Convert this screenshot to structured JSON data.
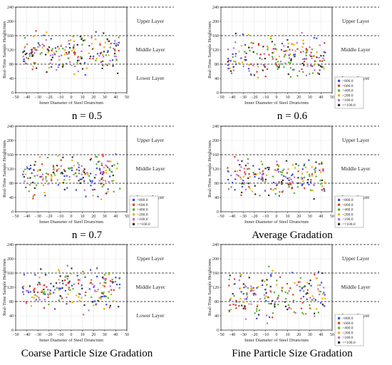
{
  "panels": [
    {
      "caption": "n = 0.5",
      "x_label": "Inner Diameter of Steel Drum/mm",
      "y_label": "Real-Time Sample Height/mm",
      "x_ticks": [
        "−50",
        "−40",
        "−30",
        "−20",
        "−10",
        "0",
        "10",
        "20",
        "30",
        "40",
        "50"
      ],
      "y_ticks": [
        "0",
        "40",
        "80",
        "120",
        "160",
        "200",
        "240"
      ],
      "layer_labels": [
        "Upper Layer",
        "Middle Layer",
        "Lower Layer"
      ],
      "legend_shown": false,
      "legend_labels": []
    },
    {
      "caption": "n = 0.6",
      "x_label": "Inner Diameter of Steel Drum/mm",
      "y_label": "Real-Time Sample Height/mm",
      "x_ticks": [
        "−50",
        "−40",
        "−30",
        "−20",
        "−10",
        "0",
        "10",
        "20",
        "30",
        "40",
        "50"
      ],
      "y_ticks": [
        "0",
        "40",
        "80",
        "120",
        "160",
        "200",
        "240"
      ],
      "layer_labels": [
        "Upper Layer",
        "Middle Layer",
        "Lower Layer"
      ],
      "legend_shown": true,
      "legend_labels": [
        ">800.0",
        ">600.0",
        ">400.0",
        ">200.0",
        ">100.0",
        "<=100.0"
      ]
    },
    {
      "caption": "n = 0.7",
      "x_label": "Inner Diameter of Steel Drum/mm",
      "y_label": "Real-Time Sample Height/mm",
      "x_ticks": [
        "−50",
        "−40",
        "−30",
        "−20",
        "−10",
        "0",
        "10",
        "20",
        "30",
        "40",
        "50"
      ],
      "y_ticks": [
        "0",
        "40",
        "80",
        "120",
        "160",
        "200",
        "240"
      ],
      "layer_labels": [
        "Upper Layer",
        "Middle Layer",
        "Lower Layer"
      ],
      "legend_shown": true,
      "legend_labels": [
        ">800.0",
        ">600.0",
        ">400.0",
        ">200.0",
        ">100.0",
        "<=100.0"
      ]
    },
    {
      "caption": "Average Gradation",
      "x_label": "Inner Diameter of Steel Drum/mm",
      "y_label": "Real-Time Sample Height/mm",
      "x_ticks": [
        "−50",
        "−40",
        "−30",
        "−20",
        "−10",
        "0",
        "10",
        "20",
        "30",
        "40",
        "50"
      ],
      "y_ticks": [
        "0",
        "40",
        "80",
        "120",
        "160",
        "200",
        "240"
      ],
      "layer_labels": [
        "Upper Layer",
        "Middle Layer",
        "Lower Layer"
      ],
      "legend_shown": true,
      "legend_labels": [
        ">800.0",
        ">600.0",
        ">400.0",
        ">200.0",
        ">100.0",
        "<=100.0"
      ]
    },
    {
      "caption": "Coarse Particle Size Gradation",
      "x_label": "Inner Diameter of Steel Drum/mm",
      "y_label": "Real-Time Sample Height/mm",
      "x_ticks": [
        "−50",
        "−40",
        "−30",
        "−20",
        "−10",
        "0",
        "10",
        "20",
        "30",
        "40",
        "50"
      ],
      "y_ticks": [
        "0",
        "40",
        "80",
        "120",
        "160",
        "200",
        "240"
      ],
      "layer_labels": [
        "Upper Layer",
        "Middle Layer",
        "Lower Layer"
      ],
      "legend_shown": false,
      "legend_labels": []
    },
    {
      "caption": "Fine Particle Size Gradation",
      "x_label": "Inner Diameter of Steel Drum/mm",
      "y_label": "Real-Time Sample Height/mm",
      "x_ticks": [
        "−50",
        "−40",
        "−30",
        "−20",
        "−10",
        "0",
        "10",
        "20",
        "30",
        "40",
        "50"
      ],
      "y_ticks": [
        "0",
        "40",
        "80",
        "120",
        "160",
        "200",
        "240"
      ],
      "layer_labels": [
        "Upper Layer",
        "Middle Layer",
        "Lower Layer"
      ],
      "legend_shown": true,
      "legend_labels": [
        ">800.0",
        ">600.0",
        ">400.0",
        ">200.0",
        ">100.0",
        "<=100.0"
      ]
    }
  ],
  "chart_data": [
    {
      "type": "scatter",
      "title": "n = 0.5",
      "xlabel": "Inner Diameter of Steel Drum/mm",
      "ylabel": "Real-Time Sample Height/mm",
      "xlim": [
        -50,
        50
      ],
      "ylim": [
        0,
        240
      ],
      "grid": true,
      "reference_lines_y": [
        80,
        160,
        240
      ],
      "legend": "none",
      "point_count": 200,
      "y_range_of_points": [
        40,
        185
      ],
      "series": [
        {
          "name": ">800.0",
          "color": "#3f4fd8"
        },
        {
          "name": ">600.0",
          "color": "#e03a2a"
        },
        {
          "name": ">400.0",
          "color": "#58b030"
        },
        {
          "name": ">200.0",
          "color": "#e8b010"
        },
        {
          "name": ">100.0",
          "color": "#b870d8"
        },
        {
          "name": "<=100.0",
          "color": "#333333"
        }
      ]
    },
    {
      "type": "scatter",
      "title": "n = 0.6",
      "xlabel": "Inner Diameter of Steel Drum/mm",
      "ylabel": "Real-Time Sample Height/mm",
      "xlim": [
        -50,
        50
      ],
      "ylim": [
        0,
        240
      ],
      "grid": true,
      "reference_lines_y": [
        80,
        160,
        240
      ],
      "legend": "bottom-right",
      "point_count": 200,
      "y_range_of_points": [
        20,
        180
      ],
      "series": [
        {
          "name": ">800.0",
          "color": "#3f4fd8"
        },
        {
          "name": ">600.0",
          "color": "#e03a2a"
        },
        {
          "name": ">400.0",
          "color": "#58b030"
        },
        {
          "name": ">200.0",
          "color": "#e8b010"
        },
        {
          "name": ">100.0",
          "color": "#b870d8"
        },
        {
          "name": "<=100.0",
          "color": "#333333"
        }
      ]
    },
    {
      "type": "scatter",
      "title": "n = 0.7",
      "xlabel": "Inner Diameter of Steel Drum/mm",
      "ylabel": "Real-Time Sample Height/mm",
      "xlim": [
        -50,
        50
      ],
      "ylim": [
        0,
        240
      ],
      "grid": true,
      "reference_lines_y": [
        80,
        160,
        240
      ],
      "legend": "bottom-right",
      "point_count": 200,
      "y_range_of_points": [
        20,
        185
      ],
      "series": [
        {
          "name": ">800.0",
          "color": "#3f4fd8"
        },
        {
          "name": ">600.0",
          "color": "#e03a2a"
        },
        {
          "name": ">400.0",
          "color": "#58b030"
        },
        {
          "name": ">200.0",
          "color": "#e8b010"
        },
        {
          "name": ">100.0",
          "color": "#b870d8"
        },
        {
          "name": "<=100.0",
          "color": "#333333"
        }
      ]
    },
    {
      "type": "scatter",
      "title": "Average Gradation",
      "xlabel": "Inner Diameter of Steel Drum/mm",
      "ylabel": "Real-Time Sample Height/mm",
      "xlim": [
        -50,
        50
      ],
      "ylim": [
        0,
        240
      ],
      "grid": true,
      "reference_lines_y": [
        80,
        160,
        240
      ],
      "legend": "bottom-right",
      "point_count": 200,
      "y_range_of_points": [
        20,
        180
      ],
      "series": [
        {
          "name": ">800.0",
          "color": "#3f4fd8"
        },
        {
          "name": ">600.0",
          "color": "#e03a2a"
        },
        {
          "name": ">400.0",
          "color": "#58b030"
        },
        {
          "name": ">200.0",
          "color": "#e8b010"
        },
        {
          "name": ">100.0",
          "color": "#b870d8"
        },
        {
          "name": "<=100.0",
          "color": "#333333"
        }
      ]
    },
    {
      "type": "scatter",
      "title": "Coarse Particle Size Gradation",
      "xlabel": "Inner Diameter of Steel Drum/mm",
      "ylabel": "Real-Time Sample Height/mm",
      "xlim": [
        -50,
        50
      ],
      "ylim": [
        0,
        240
      ],
      "grid": true,
      "reference_lines_y": [
        80,
        160,
        240
      ],
      "legend": "none",
      "point_count": 200,
      "y_range_of_points": [
        30,
        200
      ],
      "series": [
        {
          "name": ">800.0",
          "color": "#3f4fd8"
        },
        {
          "name": ">600.0",
          "color": "#e03a2a"
        },
        {
          "name": ">400.0",
          "color": "#58b030"
        },
        {
          "name": ">200.0",
          "color": "#e8b010"
        },
        {
          "name": ">100.0",
          "color": "#b870d8"
        },
        {
          "name": "<=100.0",
          "color": "#333333"
        }
      ]
    },
    {
      "type": "scatter",
      "title": "Fine Particle Size Gradation",
      "xlabel": "Inner Diameter of Steel Drum/mm",
      "ylabel": "Real-Time Sample Height/mm",
      "xlim": [
        -50,
        50
      ],
      "ylim": [
        0,
        240
      ],
      "grid": true,
      "reference_lines_y": [
        80,
        160,
        240
      ],
      "legend": "bottom-right",
      "point_count": 200,
      "y_range_of_points": [
        15,
        185
      ],
      "series": [
        {
          "name": ">800.0",
          "color": "#3f4fd8"
        },
        {
          "name": ">600.0",
          "color": "#e03a2a"
        },
        {
          "name": ">400.0",
          "color": "#58b030"
        },
        {
          "name": ">200.0",
          "color": "#e8b010"
        },
        {
          "name": ">100.0",
          "color": "#b870d8"
        },
        {
          "name": "<=100.0",
          "color": "#333333"
        }
      ]
    }
  ]
}
